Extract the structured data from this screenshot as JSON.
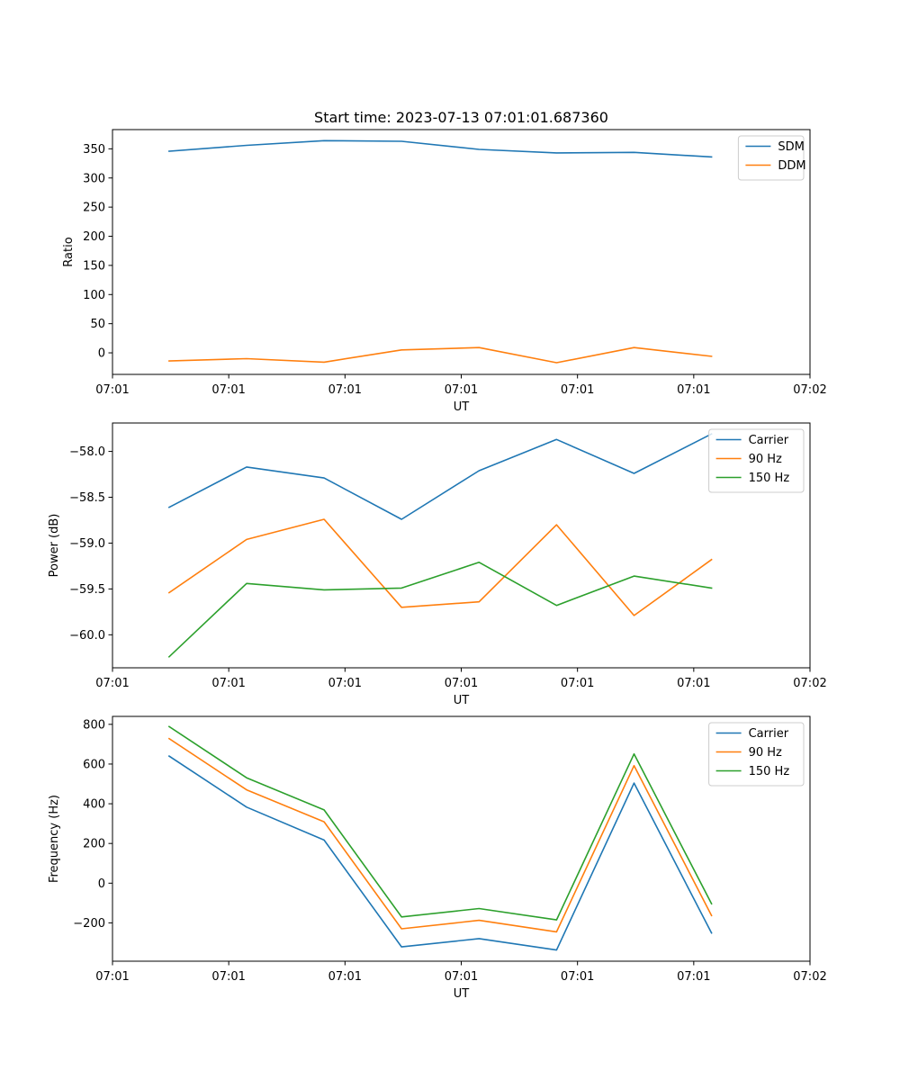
{
  "colors": {
    "c0": "#1f77b4",
    "c1": "#ff7f0e",
    "c2": "#2ca02c"
  },
  "chart_data": [
    {
      "type": "line",
      "title": "Start time: 2023-07-13 07:01:01.687360",
      "xlabel": "UT",
      "ylabel": "Ratio",
      "x": [
        1,
        2,
        3,
        4,
        5,
        6,
        7,
        8
      ],
      "xlim": [
        0.27,
        9.27
      ],
      "xticks": [
        {
          "value": 0.27,
          "label": "07:01"
        },
        {
          "value": 1.77,
          "label": "07:01"
        },
        {
          "value": 3.27,
          "label": "07:01"
        },
        {
          "value": 4.77,
          "label": "07:01"
        },
        {
          "value": 6.27,
          "label": "07:01"
        },
        {
          "value": 7.77,
          "label": "07:01"
        },
        {
          "value": 9.27,
          "label": "07:02"
        }
      ],
      "ylim": [
        -37,
        383
      ],
      "yticks": [
        {
          "value": 0,
          "label": "0"
        },
        {
          "value": 50,
          "label": "50"
        },
        {
          "value": 100,
          "label": "100"
        },
        {
          "value": 150,
          "label": "150"
        },
        {
          "value": 200,
          "label": "200"
        },
        {
          "value": 250,
          "label": "250"
        },
        {
          "value": 300,
          "label": "300"
        },
        {
          "value": 350,
          "label": "350"
        }
      ],
      "legend_position": "top-right",
      "series": [
        {
          "name": "SDM",
          "color": "#1f77b4",
          "values": [
            346,
            356,
            364,
            363,
            349,
            343,
            344,
            336
          ]
        },
        {
          "name": "DDM",
          "color": "#ff7f0e",
          "values": [
            -14,
            -10,
            -16,
            5,
            9,
            -17,
            9,
            -6
          ]
        }
      ]
    },
    {
      "type": "line",
      "title": "",
      "xlabel": "UT",
      "ylabel": "Power (dB)",
      "x": [
        1,
        2,
        3,
        4,
        5,
        6,
        7,
        8
      ],
      "xlim": [
        0.27,
        9.27
      ],
      "xticks": [
        {
          "value": 0.27,
          "label": "07:01"
        },
        {
          "value": 1.77,
          "label": "07:01"
        },
        {
          "value": 3.27,
          "label": "07:01"
        },
        {
          "value": 4.77,
          "label": "07:01"
        },
        {
          "value": 6.27,
          "label": "07:01"
        },
        {
          "value": 7.77,
          "label": "07:01"
        },
        {
          "value": 9.27,
          "label": "07:02"
        }
      ],
      "ylim": [
        -60.36,
        -57.69
      ],
      "yticks": [
        {
          "value": -60.0,
          "label": "−60.0"
        },
        {
          "value": -59.5,
          "label": "−59.5"
        },
        {
          "value": -59.0,
          "label": "−59.0"
        },
        {
          "value": -58.5,
          "label": "−58.5"
        },
        {
          "value": -58.0,
          "label": "−58.0"
        }
      ],
      "legend_position": "top-right",
      "series": [
        {
          "name": "Carrier",
          "color": "#1f77b4",
          "values": [
            -58.61,
            -58.17,
            -58.29,
            -58.74,
            -58.21,
            -57.87,
            -58.24,
            -57.81
          ]
        },
        {
          "name": "90 Hz",
          "color": "#ff7f0e",
          "values": [
            -59.54,
            -58.96,
            -58.74,
            -59.7,
            -59.64,
            -58.8,
            -59.79,
            -59.18
          ]
        },
        {
          "name": "150 Hz",
          "color": "#2ca02c",
          "values": [
            -60.24,
            -59.44,
            -59.51,
            -59.49,
            -59.21,
            -59.68,
            -59.36,
            -59.49
          ]
        }
      ]
    },
    {
      "type": "line",
      "title": "",
      "xlabel": "UT",
      "ylabel": "Frequency (Hz)",
      "x": [
        1,
        2,
        3,
        4,
        5,
        6,
        7,
        8
      ],
      "xlim": [
        0.27,
        9.27
      ],
      "xticks": [
        {
          "value": 0.27,
          "label": "07:01"
        },
        {
          "value": 1.77,
          "label": "07:01"
        },
        {
          "value": 3.27,
          "label": "07:01"
        },
        {
          "value": 4.77,
          "label": "07:01"
        },
        {
          "value": 6.27,
          "label": "07:01"
        },
        {
          "value": 7.77,
          "label": "07:01"
        },
        {
          "value": 9.27,
          "label": "07:02"
        }
      ],
      "ylim": [
        -393,
        840
      ],
      "yticks": [
        {
          "value": -200,
          "label": "−200"
        },
        {
          "value": 0,
          "label": "0"
        },
        {
          "value": 200,
          "label": "200"
        },
        {
          "value": 400,
          "label": "400"
        },
        {
          "value": 600,
          "label": "600"
        },
        {
          "value": 800,
          "label": "800"
        }
      ],
      "legend_position": "top-right",
      "series": [
        {
          "name": "Carrier",
          "color": "#1f77b4",
          "values": [
            640,
            383,
            217,
            -321,
            -279,
            -337,
            504,
            -251
          ]
        },
        {
          "name": "90 Hz",
          "color": "#ff7f0e",
          "values": [
            728,
            470,
            309,
            -230,
            -187,
            -245,
            592,
            -163
          ]
        },
        {
          "name": "150 Hz",
          "color": "#2ca02c",
          "values": [
            789,
            531,
            369,
            -170,
            -128,
            -185,
            651,
            -104
          ]
        }
      ]
    }
  ]
}
